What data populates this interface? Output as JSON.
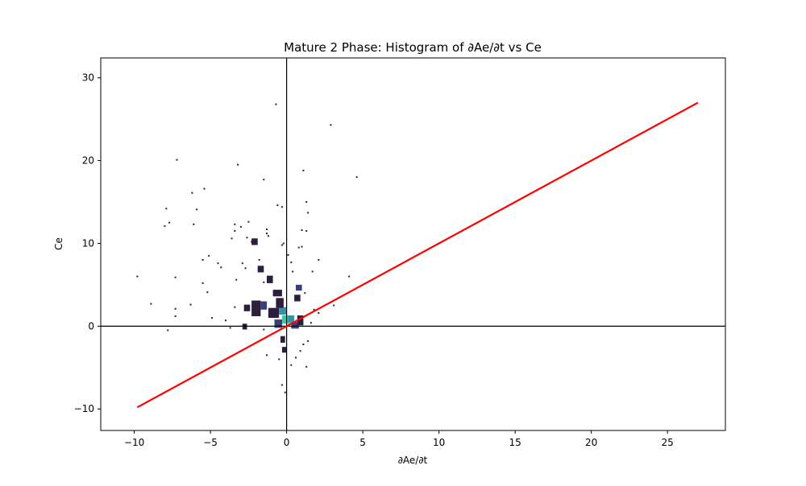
{
  "chart_data": {
    "type": "heatmap",
    "title": "Mature 2 Phase: Histogram of ∂Ae/∂t vs Ce",
    "xlabel": "∂Ae/∂t",
    "ylabel": "Ce",
    "xlim": [
      -12.2,
      28.8
    ],
    "ylim": [
      -12.6,
      32.4
    ],
    "xticks": [
      -10,
      -5,
      0,
      5,
      10,
      15,
      20,
      25
    ],
    "yticks": [
      -10,
      0,
      10,
      20,
      30
    ],
    "grid": false,
    "reference_lines": {
      "x": 0,
      "y": 0
    },
    "fit_line": {
      "color": "#ff0000",
      "points": [
        [
          -9.8,
          -9.8
        ],
        [
          27.0,
          27.0
        ]
      ]
    },
    "colors": {
      "low": "#2d1e3e",
      "mid": "#3a3f7a",
      "high": "#3b8fa3",
      "peak": "#4cc0ad"
    },
    "cells": [
      {
        "x": -0.3,
        "y": 0.3,
        "w": 0.6,
        "h": 1.0,
        "level": 3
      },
      {
        "x": 0.1,
        "y": 0.5,
        "w": 0.4,
        "h": 0.8,
        "level": 2
      },
      {
        "x": -0.5,
        "y": 1.4,
        "w": 0.5,
        "h": 0.9,
        "level": 2
      },
      {
        "x": 0.3,
        "y": -0.3,
        "w": 0.5,
        "h": 0.8,
        "level": 1
      },
      {
        "x": -0.8,
        "y": -0.2,
        "w": 0.5,
        "h": 1.0,
        "level": 1
      },
      {
        "x": -1.2,
        "y": 1.0,
        "w": 0.7,
        "h": 1.2,
        "level": 0
      },
      {
        "x": -2.3,
        "y": 1.2,
        "w": 0.6,
        "h": 1.9,
        "level": 0
      },
      {
        "x": -2.8,
        "y": 1.8,
        "w": 0.4,
        "h": 0.8,
        "level": 0
      },
      {
        "x": -1.7,
        "y": 2.0,
        "w": 0.4,
        "h": 1.0,
        "level": 1
      },
      {
        "x": -0.7,
        "y": 2.2,
        "w": 0.5,
        "h": 1.2,
        "level": 0
      },
      {
        "x": -0.9,
        "y": 3.6,
        "w": 0.6,
        "h": 0.8,
        "level": 0
      },
      {
        "x": 0.5,
        "y": 3.0,
        "w": 0.4,
        "h": 0.8,
        "level": 0
      },
      {
        "x": 0.6,
        "y": 4.3,
        "w": 0.4,
        "h": 0.7,
        "level": 1
      },
      {
        "x": -1.3,
        "y": 5.2,
        "w": 0.4,
        "h": 0.9,
        "level": 0
      },
      {
        "x": -1.9,
        "y": 6.5,
        "w": 0.4,
        "h": 0.8,
        "level": 0
      },
      {
        "x": -2.3,
        "y": 9.8,
        "w": 0.4,
        "h": 0.8,
        "level": 0
      },
      {
        "x": -0.4,
        "y": -2.0,
        "w": 0.3,
        "h": 0.8,
        "level": 0
      },
      {
        "x": -0.3,
        "y": -3.2,
        "w": 0.3,
        "h": 0.7,
        "level": 0
      },
      {
        "x": 0.7,
        "y": 0.1,
        "w": 0.4,
        "h": 1.2,
        "level": 0
      },
      {
        "x": -2.9,
        "y": -0.4,
        "w": 0.3,
        "h": 0.7,
        "level": 0
      }
    ],
    "points": [
      [
        -9.8,
        6.0
      ],
      [
        -8.9,
        2.7
      ],
      [
        -7.9,
        14.2
      ],
      [
        -8.0,
        12.1
      ],
      [
        -7.7,
        12.5
      ],
      [
        -7.2,
        20.1
      ],
      [
        -7.3,
        5.9
      ],
      [
        -7.3,
        2.1
      ],
      [
        -7.3,
        1.2
      ],
      [
        -6.3,
        2.6
      ],
      [
        -6.2,
        16.1
      ],
      [
        -6.1,
        12.3
      ],
      [
        -5.9,
        14.1
      ],
      [
        -5.4,
        16.6
      ],
      [
        -5.5,
        8.0
      ],
      [
        -5.5,
        5.2
      ],
      [
        -5.1,
        8.5
      ],
      [
        -5.2,
        4.1
      ],
      [
        -4.9,
        1.0
      ],
      [
        -4.5,
        7.6
      ],
      [
        -4.3,
        7.1
      ],
      [
        -4.0,
        0.7
      ],
      [
        -3.6,
        10.6
      ],
      [
        -3.4,
        12.3
      ],
      [
        -3.4,
        11.5
      ],
      [
        -3.2,
        19.5
      ],
      [
        -3.0,
        12.0
      ],
      [
        -2.9,
        7.6
      ],
      [
        -2.7,
        7.0
      ],
      [
        -3.4,
        2.3
      ],
      [
        -3.3,
        5.6
      ],
      [
        -2.6,
        10.7
      ],
      [
        -2.5,
        12.6
      ],
      [
        -2.3,
        10.2
      ],
      [
        -1.5,
        17.7
      ],
      [
        -1.3,
        11.7
      ],
      [
        -1.3,
        11.2
      ],
      [
        -1.2,
        10.9
      ],
      [
        -0.7,
        26.8
      ],
      [
        -0.6,
        14.6
      ],
      [
        -0.3,
        14.4
      ],
      [
        -0.3,
        9.8
      ],
      [
        -0.2,
        10.0
      ],
      [
        0.1,
        8.6
      ],
      [
        0.3,
        7.7
      ],
      [
        0.4,
        6.6
      ],
      [
        0.8,
        9.5
      ],
      [
        1.0,
        11.6
      ],
      [
        1.0,
        9.6
      ],
      [
        1.1,
        18.8
      ],
      [
        1.3,
        15.0
      ],
      [
        1.4,
        13.7
      ],
      [
        1.3,
        11.5
      ],
      [
        1.7,
        6.6
      ],
      [
        2.1,
        8.0
      ],
      [
        2.9,
        24.3
      ],
      [
        4.6,
        18.0
      ],
      [
        4.1,
        6.0
      ],
      [
        3.1,
        2.5
      ],
      [
        2.1,
        1.6
      ],
      [
        -7.8,
        -0.5
      ],
      [
        -1.3,
        -3.5
      ],
      [
        -0.3,
        -7.1
      ],
      [
        -0.1,
        -8.0
      ],
      [
        0.3,
        -4.7
      ],
      [
        0.9,
        -3.0
      ],
      [
        1.3,
        -4.9
      ],
      [
        1.1,
        -2.2
      ],
      [
        1.4,
        -1.8
      ],
      [
        0.6,
        -3.8
      ],
      [
        -0.5,
        -4.0
      ],
      [
        -1.5,
        -0.4
      ],
      [
        1.8,
        2.0
      ],
      [
        1.6,
        0.4
      ],
      [
        1.2,
        4.0
      ],
      [
        -1.8,
        8.0
      ],
      [
        -1.5,
        5.3
      ],
      [
        -3.7,
        -0.2
      ]
    ]
  }
}
